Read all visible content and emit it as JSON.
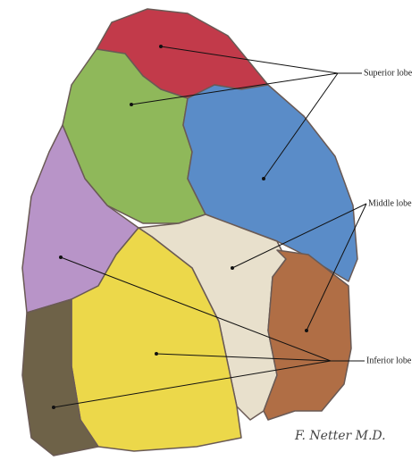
{
  "labels": {
    "superior": "Superior lobe",
    "middle": "Middle lobe",
    "inferior": "Inferior lobe"
  },
  "signature": "F. Netter M.D."
}
